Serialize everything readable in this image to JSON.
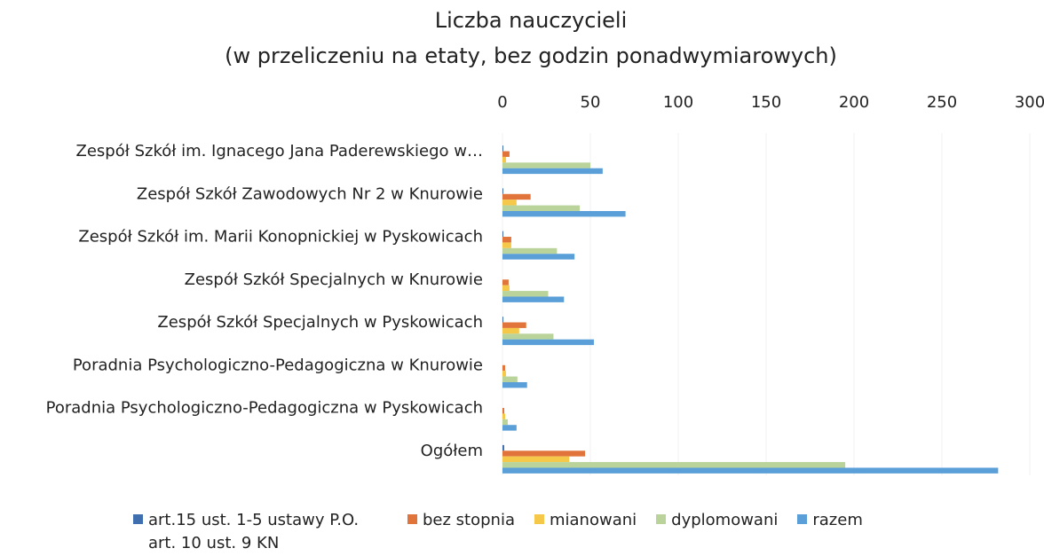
{
  "chart_data": {
    "type": "bar",
    "orientation": "horizontal",
    "title": "Liczba nauczycieli",
    "subtitle": "(w przeliczeniu na etaty, bez godzin ponadwymiarowych)",
    "categories": [
      "Zespół Szkół im. Ignacego Jana Paderewskiego w…",
      "Zespół Szkół Zawodowych Nr 2 w Knurowie",
      "Zespół Szkół im. Marii Konopnickiej w Pyskowicach",
      "Zespół Szkół Specjalnych w Knurowie",
      "Zespół Szkół Specjalnych w Pyskowicach",
      "Poradnia Psychologiczno-Pedagogiczna w Knurowie",
      "Poradnia Psychologiczno-Pedagogiczna w Pyskowicach",
      "Ogółem"
    ],
    "series": [
      {
        "name": "art.15 ust. 1-5 ustawy P.O. art. 10 ust. 9 KN",
        "color": "#3f6fae",
        "values": [
          0.5,
          0.5,
          0.5,
          0,
          0.5,
          0,
          0,
          1
        ]
      },
      {
        "name": "bez stopnia",
        "color": "#e0743a",
        "values": [
          4,
          16,
          5,
          3.5,
          13.5,
          1.5,
          1,
          47
        ]
      },
      {
        "name": "mianowani",
        "color": "#f5c84a",
        "values": [
          2,
          8,
          5,
          4,
          9.5,
          2,
          1.5,
          38
        ]
      },
      {
        "name": "dyplomowani",
        "color": "#b9d39a",
        "values": [
          50,
          44,
          31,
          26,
          29,
          8.5,
          3,
          195
        ]
      },
      {
        "name": "razem",
        "color": "#5a9fd8",
        "values": [
          57,
          70,
          41,
          35,
          52,
          14,
          8,
          282
        ]
      }
    ],
    "xlim": [
      0,
      300
    ],
    "xticks": [
      0,
      50,
      100,
      150,
      200,
      250,
      300
    ],
    "grid": true,
    "legend": "bottom"
  }
}
